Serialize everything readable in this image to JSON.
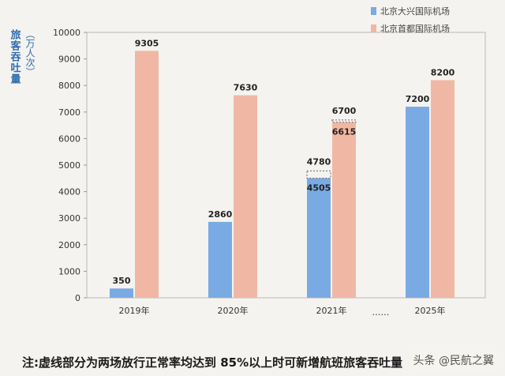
{
  "chart_data": {
    "type": "bar",
    "ylabel": "旅客吞吐量",
    "yunit": "（万人次）",
    "ylim": [
      0,
      10000
    ],
    "yticks": [
      0,
      1000,
      2000,
      3000,
      4000,
      5000,
      6000,
      7000,
      8000,
      9000,
      10000
    ],
    "categories": [
      "2019年",
      "2020年",
      "2021年",
      "2025年"
    ],
    "ellipsis": "……",
    "legend_position": "top-right",
    "series": [
      {
        "name": "北京大兴国际机场",
        "color": "#7aaae3",
        "values": [
          350,
          2860,
          4505,
          7200
        ]
      },
      {
        "name": "北京首都国际机场",
        "color": "#f0b8a4",
        "values": [
          9305,
          7630,
          6615,
          8200
        ]
      }
    ],
    "dashed_extensions": [
      {
        "category": "2021年",
        "series": 0,
        "from": 4505,
        "to": 4780,
        "label": "4780"
      },
      {
        "category": "2021年",
        "series": 1,
        "from": 6615,
        "to": 6700,
        "label": "6700"
      }
    ]
  },
  "note": "注:虚线部分为两场放行正常率均达到 85%以上时可新增航班旅客吞吐量",
  "watermark": "头条 @民航之翼"
}
